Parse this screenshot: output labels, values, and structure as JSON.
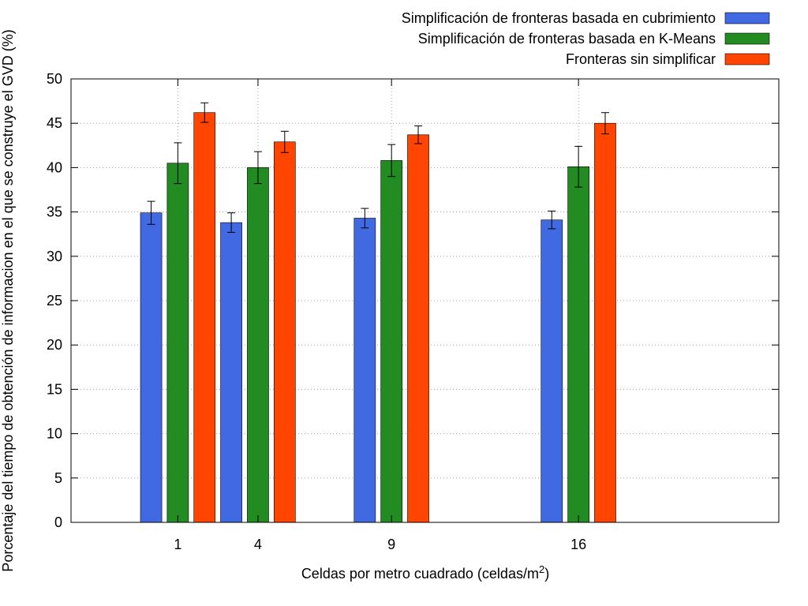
{
  "chart_data": {
    "type": "bar",
    "xlabel": "Celdas por metro cuadrado (celdas/m",
    "xlabel_sup": "2",
    "xlabel_end": ")",
    "ylabel": "Porcentaje del tiempo de obtención de informacion en el que se construye el GVD (%)",
    "ylim": [
      0,
      50
    ],
    "yticks": [
      0,
      5,
      10,
      15,
      20,
      25,
      30,
      35,
      40,
      45,
      50
    ],
    "x_range": [
      -3,
      23.5
    ],
    "categories": [
      "1",
      "4",
      "9",
      "16"
    ],
    "x": [
      1,
      4,
      9,
      16
    ],
    "grid": true,
    "legend_position": "top-right",
    "series": [
      {
        "name": "Simplificación de fronteras basada en cubrimiento",
        "color": "#4169e1",
        "values": [
          34.9,
          33.8,
          34.3,
          34.1
        ],
        "errors": [
          1.3,
          1.1,
          1.1,
          1.0
        ]
      },
      {
        "name": "Simplificación de fronteras basada en K-Means",
        "color": "#228b22",
        "values": [
          40.5,
          40.0,
          40.8,
          40.1
        ],
        "errors": [
          2.3,
          1.8,
          1.8,
          2.3
        ]
      },
      {
        "name": "Fronteras sin simplificar",
        "color": "#ff4500",
        "values": [
          46.2,
          42.9,
          43.7,
          45.0
        ],
        "errors": [
          1.1,
          1.2,
          1.0,
          1.2
        ]
      }
    ]
  }
}
